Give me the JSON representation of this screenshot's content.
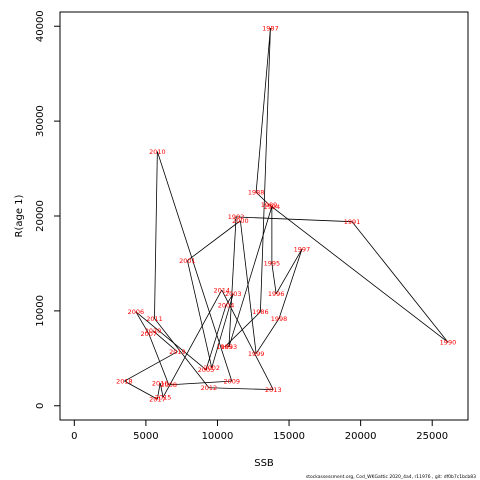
{
  "chart_data": {
    "type": "line",
    "xlabel": "SSB",
    "ylabel": "R(age 1)",
    "xlim": [
      -1000,
      27500
    ],
    "ylim": [
      -1500,
      41500
    ],
    "xticks": [
      0,
      5000,
      10000,
      15000,
      20000,
      25000
    ],
    "yticks": [
      0,
      10000,
      20000,
      30000,
      40000
    ],
    "label_color": "#ff0000",
    "line_color": "#000000",
    "points": [
      {
        "year": "1985",
        "x": 10500,
        "y": 6200
      },
      {
        "year": "1986",
        "x": 13000,
        "y": 9900
      },
      {
        "year": "1987",
        "x": 13700,
        "y": 39800
      },
      {
        "year": "1988",
        "x": 12700,
        "y": 22500
      },
      {
        "year": "1989",
        "x": 13600,
        "y": 21200
      },
      {
        "year": "1990",
        "x": 26100,
        "y": 6700
      },
      {
        "year": "1991",
        "x": 19400,
        "y": 19400
      },
      {
        "year": "1992",
        "x": 11300,
        "y": 19900
      },
      {
        "year": "1993",
        "x": 10800,
        "y": 6200
      },
      {
        "year": "1994",
        "x": 13800,
        "y": 21000
      },
      {
        "year": "1995",
        "x": 13800,
        "y": 15000
      },
      {
        "year": "1996",
        "x": 14100,
        "y": 11800
      },
      {
        "year": "1997",
        "x": 15900,
        "y": 16500
      },
      {
        "year": "1998",
        "x": 14300,
        "y": 9200
      },
      {
        "year": "1999",
        "x": 12700,
        "y": 5500
      },
      {
        "year": "2000",
        "x": 11600,
        "y": 19500
      },
      {
        "year": "2001",
        "x": 7900,
        "y": 15300
      },
      {
        "year": "2002",
        "x": 9600,
        "y": 4000
      },
      {
        "year": "2003",
        "x": 11100,
        "y": 11800
      },
      {
        "year": "2004",
        "x": 10600,
        "y": 10600
      },
      {
        "year": "2005",
        "x": 9200,
        "y": 3800
      },
      {
        "year": "2006",
        "x": 4300,
        "y": 9900
      },
      {
        "year": "2007",
        "x": 5200,
        "y": 7600
      },
      {
        "year": "2008",
        "x": 6600,
        "y": 2200
      },
      {
        "year": "2009",
        "x": 11000,
        "y": 2600
      },
      {
        "year": "2010",
        "x": 5800,
        "y": 26800
      },
      {
        "year": "2011",
        "x": 5600,
        "y": 9200
      },
      {
        "year": "2012",
        "x": 9400,
        "y": 1900
      },
      {
        "year": "2013",
        "x": 13900,
        "y": 1700
      },
      {
        "year": "2014",
        "x": 10300,
        "y": 12200
      },
      {
        "year": "2015",
        "x": 6200,
        "y": 900
      },
      {
        "year": "2016",
        "x": 6000,
        "y": 2400
      },
      {
        "year": "2017",
        "x": 5800,
        "y": 700
      },
      {
        "year": "2018",
        "x": 3500,
        "y": 2600
      },
      {
        "year": "2019",
        "x": 7200,
        "y": 5700
      },
      {
        "year": "2020",
        "x": 5500,
        "y": 7900
      }
    ]
  },
  "footer": "stockassessment.org,  Cod_WKGattic  2020_4a4, r11976 , git: df0b7c1bcb83"
}
